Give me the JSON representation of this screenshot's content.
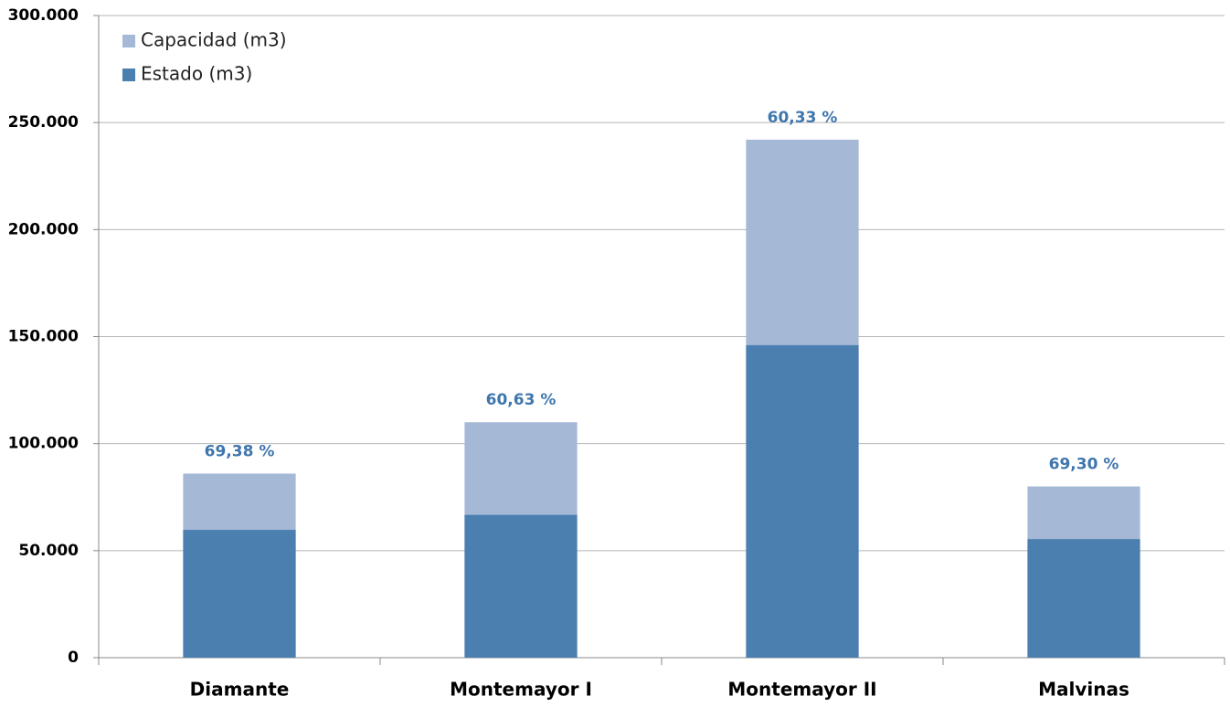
{
  "chart_data": {
    "type": "bar",
    "categories": [
      "Diamante",
      "Montemayor I",
      "Montemayor II",
      "Malvinas"
    ],
    "series": [
      {
        "name": "Capacidad (m3)",
        "color": "#a5b8d6",
        "values": [
          86000,
          110000,
          242000,
          80000
        ]
      },
      {
        "name": "Estado (m3)",
        "color": "#4a7fb0",
        "values": [
          59700,
          66700,
          146000,
          55400
        ]
      }
    ],
    "percentages": [
      {
        "value": 69.38,
        "label": "69,38 %"
      },
      {
        "value": 60.63,
        "label": "60,63 %"
      },
      {
        "value": 60.33,
        "label": "60,33 %"
      },
      {
        "value": 69.3,
        "label": "69,30 %"
      }
    ],
    "ylim": [
      0,
      300000
    ],
    "yticks": [
      0,
      {
        "value": 50000,
        "label": "50.000"
      },
      {
        "value": 100000,
        "label": "100.000"
      },
      {
        "value": 150000,
        "label": "150.000"
      },
      {
        "value": 200000,
        "label": "200.000"
      },
      {
        "value": 250000,
        "label": "250.000"
      },
      {
        "value": 300000,
        "label": "300.000"
      }
    ],
    "grid": true,
    "legend": "top-left"
  }
}
